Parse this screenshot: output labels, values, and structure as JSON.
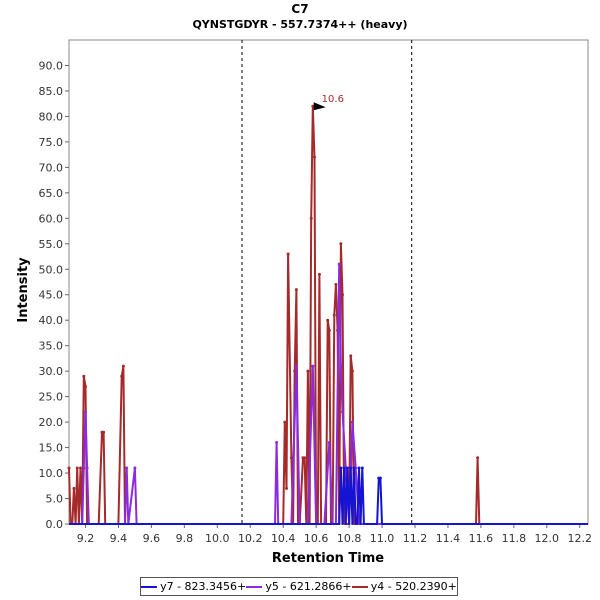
{
  "chart_data": {
    "type": "line",
    "title": "C7",
    "subtitle": "QYNSTGDYR - 557.7374++ (heavy)",
    "xlabel": "Retention Time",
    "ylabel": "Intensity",
    "xlim": [
      9.1,
      12.25
    ],
    "ylim": [
      0,
      95
    ],
    "x_ticks": [
      "9.2",
      "9.4",
      "9.6",
      "9.8",
      "10.0",
      "10.2",
      "10.4",
      "10.6",
      "10.8",
      "11.0",
      "11.2",
      "11.4",
      "11.6",
      "11.8",
      "12.0",
      "12.2"
    ],
    "x_tick_values": [
      9.2,
      9.4,
      9.6,
      9.8,
      10.0,
      10.2,
      10.4,
      10.6,
      10.8,
      11.0,
      11.2,
      11.4,
      11.6,
      11.8,
      12.0,
      12.2
    ],
    "y_ticks": [
      "0.0",
      "5.0",
      "10.0",
      "15.0",
      "20.0",
      "25.0",
      "30.0",
      "35.0",
      "40.0",
      "45.0",
      "50.0",
      "55.0",
      "60.0",
      "65.0",
      "70.0",
      "75.0",
      "80.0",
      "85.0",
      "90.0"
    ],
    "y_tick_values": [
      0,
      5,
      10,
      15,
      20,
      25,
      30,
      35,
      40,
      45,
      50,
      55,
      60,
      65,
      70,
      75,
      80,
      85,
      90
    ],
    "vlines": [
      10.15,
      11.18
    ],
    "annotation": {
      "label": "10.6",
      "x": 10.67,
      "y": 82
    },
    "grid": false,
    "legend_position": "bottom",
    "series": [
      {
        "name": "y7 - 823.3456+",
        "color": "#1414d2",
        "x": [
          9.1,
          10.74,
          10.75,
          10.76,
          10.77,
          10.78,
          10.79,
          10.8,
          10.81,
          10.82,
          10.83,
          10.84,
          10.85,
          10.86,
          10.87,
          10.88,
          10.89,
          10.9,
          10.91,
          10.97,
          10.98,
          10.99,
          11.0,
          12.25
        ],
        "y": [
          0,
          0,
          11,
          0,
          11,
          0,
          11,
          0,
          11,
          0,
          11,
          0,
          0,
          11,
          0,
          11,
          0,
          0,
          0,
          0,
          9,
          9,
          0,
          0
        ]
      },
      {
        "name": "y5 - 621.2866+",
        "color": "#8a2be2",
        "x": [
          9.1,
          9.18,
          9.19,
          9.2,
          9.21,
          9.22,
          9.3,
          9.4,
          9.44,
          9.45,
          9.46,
          9.5,
          9.51,
          10.35,
          10.36,
          10.37,
          10.45,
          10.48,
          10.5,
          10.55,
          10.58,
          10.6,
          10.62,
          10.65,
          10.68,
          10.7,
          10.72,
          10.74,
          10.75,
          10.76,
          10.78,
          10.8,
          10.82,
          10.84,
          10.86,
          10.9,
          12.25
        ],
        "y": [
          0,
          0,
          11,
          22,
          11,
          0,
          0,
          0,
          0,
          11,
          0,
          11,
          0,
          0,
          16,
          0,
          0,
          31,
          0,
          0,
          31,
          0,
          0,
          0,
          16,
          0,
          0,
          51,
          31,
          22,
          11,
          0,
          20,
          11,
          0,
          0,
          0
        ]
      },
      {
        "name": "y4 - 520.2390+",
        "color": "#a52a2a",
        "x": [
          9.1,
          9.11,
          9.12,
          9.13,
          9.14,
          9.15,
          9.16,
          9.17,
          9.18,
          9.19,
          9.2,
          9.21,
          9.22,
          9.23,
          9.24,
          9.25,
          9.28,
          9.3,
          9.31,
          9.32,
          9.33,
          9.34,
          9.35,
          9.4,
          9.42,
          9.43,
          9.44,
          9.45,
          9.46,
          10.4,
          10.41,
          10.42,
          10.43,
          10.45,
          10.46,
          10.47,
          10.48,
          10.49,
          10.5,
          10.52,
          10.53,
          10.54,
          10.55,
          10.56,
          10.57,
          10.58,
          10.59,
          10.6,
          10.61,
          10.62,
          10.63,
          10.64,
          10.65,
          10.66,
          10.67,
          10.68,
          10.69,
          10.7,
          10.71,
          10.72,
          10.73,
          10.74,
          10.75,
          10.76,
          10.77,
          10.78,
          10.79,
          10.8,
          10.81,
          10.82,
          10.83,
          10.84,
          10.85,
          10.86,
          10.87,
          10.88,
          10.89,
          10.9,
          10.91,
          10.95,
          10.96,
          10.97,
          10.98,
          10.99,
          11.0,
          11.55,
          11.57,
          11.58,
          11.59,
          11.6,
          12.25
        ],
        "y": [
          11,
          0,
          0,
          7,
          0,
          11,
          0,
          11,
          0,
          29,
          27,
          0,
          0,
          0,
          0,
          0,
          0,
          18,
          18,
          0,
          0,
          0,
          0,
          0,
          29,
          31,
          0,
          0,
          0,
          0,
          20,
          7,
          53,
          13,
          0,
          30,
          46,
          0,
          0,
          13,
          13,
          0,
          30,
          0,
          60,
          82,
          72,
          0,
          0,
          49,
          0,
          0,
          0,
          0,
          40,
          38,
          0,
          0,
          41,
          47,
          38,
          0,
          55,
          45,
          0,
          0,
          0,
          0,
          33,
          30,
          0,
          0,
          0,
          0,
          0,
          0,
          0,
          0,
          0,
          0,
          0,
          0,
          0,
          0,
          0,
          0,
          0,
          13,
          0,
          0,
          0
        ]
      }
    ]
  }
}
